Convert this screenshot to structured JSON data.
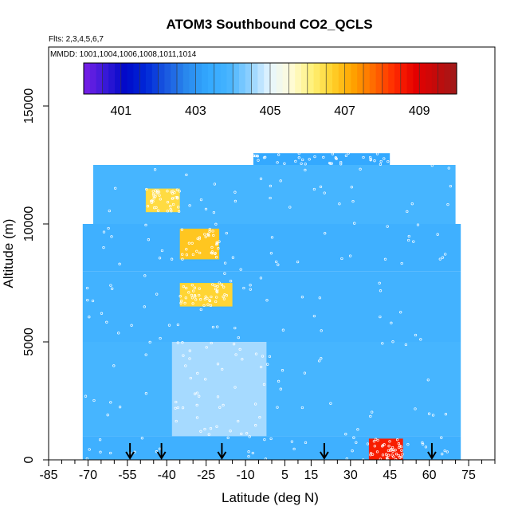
{
  "chart_data": {
    "type": "heatmap",
    "title": "ATOM3 Southbound CO2_QCLS",
    "flights_note": "Flts: 2,3,4,5,6,7",
    "dates_note": "MMDD: 1001,1004,1006,1008,1011,1014",
    "xlabel": "Latitude (deg N)",
    "ylabel": "Altitude (m)",
    "xlim": [
      -85,
      85
    ],
    "ylim": [
      0,
      17500
    ],
    "x_ticks": [
      -85,
      -70,
      -55,
      -40,
      -25,
      -10,
      5,
      15,
      30,
      45,
      60,
      75
    ],
    "y_ticks": [
      0,
      5000,
      10000,
      15000
    ],
    "colorbar": {
      "range": [
        400,
        410
      ],
      "ticks": [
        401,
        403,
        405,
        407,
        409
      ],
      "colors": [
        "#7a1fe6",
        "#3a1ad8",
        "#0008c8",
        "#0028d8",
        "#1a5ae0",
        "#2a8aee",
        "#32a8ff",
        "#45b4ff",
        "#8dcfff",
        "#e6f6ff",
        "#fffbd8",
        "#fff27a",
        "#ffd12a",
        "#ffa300",
        "#ff6a00",
        "#ff2a00",
        "#e60000",
        "#c40a0a",
        "#9e1a1a"
      ]
    },
    "flight_markers_lat": [
      -54,
      -42,
      -19,
      20,
      61
    ],
    "sample_field": [
      {
        "lat_min": -72,
        "lat_max": 72,
        "alt_min": 0,
        "alt_max": 1000,
        "co2": 403.7
      },
      {
        "lat_min": 37,
        "lat_max": 50,
        "alt_min": 0,
        "alt_max": 900,
        "co2": 408.5
      },
      {
        "lat_min": -72,
        "lat_max": 72,
        "alt_min": 1000,
        "alt_max": 5000,
        "co2": 403.9
      },
      {
        "lat_min": -38,
        "lat_max": -2,
        "alt_min": 1000,
        "alt_max": 5000,
        "co2": 404.6
      },
      {
        "lat_min": -72,
        "lat_max": 72,
        "alt_min": 5000,
        "alt_max": 8000,
        "co2": 403.8
      },
      {
        "lat_min": -35,
        "lat_max": -15,
        "alt_min": 6500,
        "alt_max": 7500,
        "co2": 406.6
      },
      {
        "lat_min": -72,
        "lat_max": 72,
        "alt_min": 8000,
        "alt_max": 10000,
        "co2": 403.7
      },
      {
        "lat_min": -35,
        "lat_max": -20,
        "alt_min": 8500,
        "alt_max": 9800,
        "co2": 406.8
      },
      {
        "lat_min": -68,
        "lat_max": 70,
        "alt_min": 10000,
        "alt_max": 12500,
        "co2": 403.9
      },
      {
        "lat_min": -48,
        "lat_max": -35,
        "alt_min": 10500,
        "alt_max": 11500,
        "co2": 406.5
      },
      {
        "lat_min": -7,
        "lat_max": 45,
        "alt_min": 12500,
        "alt_max": 13000,
        "co2": 403.4
      }
    ]
  }
}
